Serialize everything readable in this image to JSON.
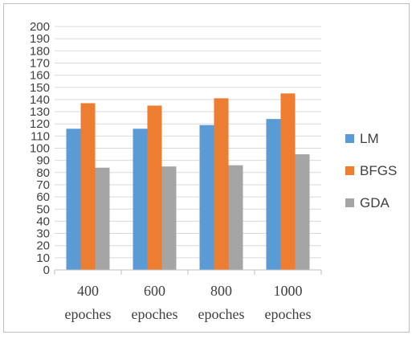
{
  "chart_data": {
    "type": "bar",
    "categories": [
      [
        "400",
        "epoches"
      ],
      [
        "600",
        "epoches"
      ],
      [
        "800",
        "epoches"
      ],
      [
        "1000",
        "epoches"
      ]
    ],
    "series": [
      {
        "name": "LM",
        "color": "#5b9bd5",
        "values": [
          116,
          116,
          119,
          124
        ]
      },
      {
        "name": "BFGS",
        "color": "#ed7d31",
        "values": [
          137,
          135,
          141,
          145
        ]
      },
      {
        "name": "GDA",
        "color": "#a5a5a5",
        "values": [
          84,
          85,
          86,
          95
        ]
      }
    ],
    "ylim": [
      0,
      200
    ],
    "ytick_step": 10,
    "grid": true,
    "legend_position": "right",
    "title": "",
    "xlabel": "",
    "ylabel": ""
  }
}
